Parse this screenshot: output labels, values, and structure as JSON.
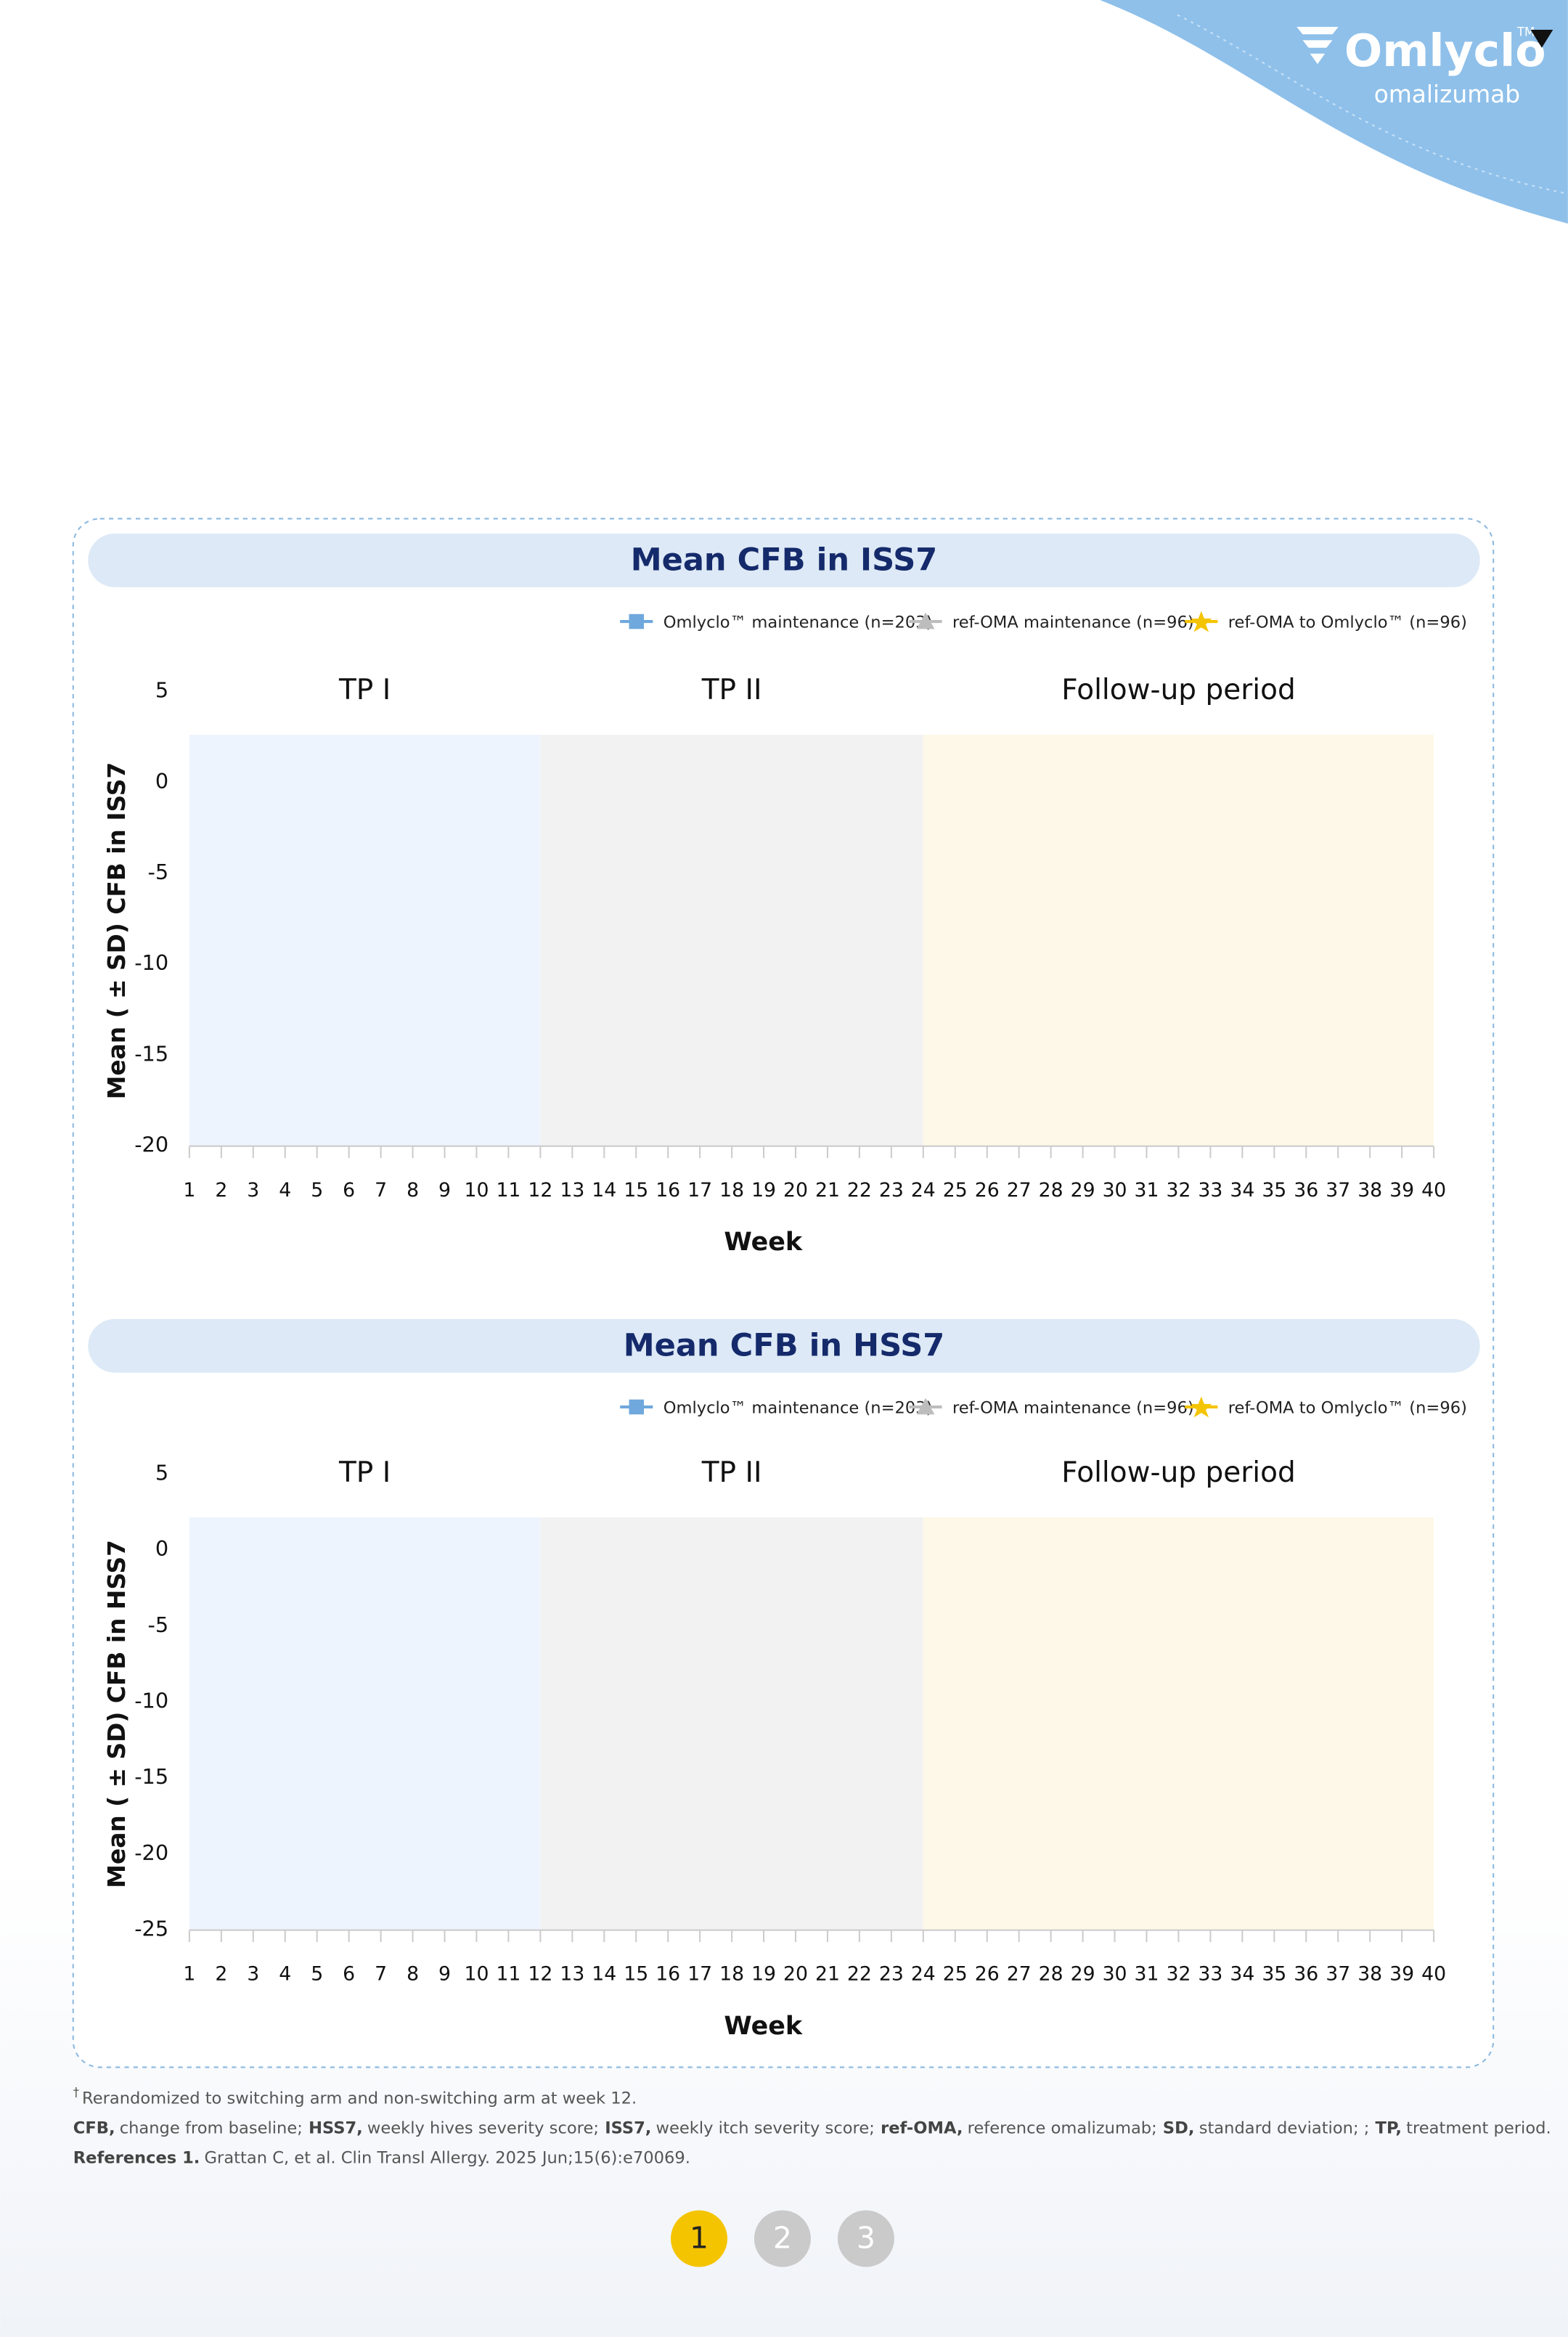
{
  "header": {
    "logo": "Omlyclo",
    "trademark": "TM",
    "tagline": "omalizumab"
  },
  "chart_data": [
    {
      "type": "line",
      "title": "Mean CFB in ISS7",
      "y_label": "Mean ( ± SD) CFB in ISS7",
      "x_label": "Week",
      "series": [
        {
          "name": "Omlyclo™ maintenance (n=203)",
          "color": "#6fa8dc",
          "marker": "square"
        },
        {
          "name": "ref-OMA maintenance (n=96)",
          "color": "#bdbdbd",
          "marker": "triangle"
        },
        {
          "name": "ref-OMA to Omlyclo™ (n=96)",
          "color": "#f5c400",
          "marker": "star"
        }
      ],
      "periods": [
        {
          "label": "TP I",
          "start": 1,
          "end": 12,
          "color": "#eef4fd"
        },
        {
          "label": "TP II",
          "start": 12,
          "end": 24,
          "color": "#f2f2f2"
        },
        {
          "label": "Follow-up period",
          "start": 24,
          "end": 40,
          "color": "#fdf8e7"
        }
      ],
      "xlim": [
        1,
        40
      ],
      "xticks": [
        1,
        2,
        3,
        4,
        5,
        6,
        7,
        8,
        9,
        10,
        11,
        12,
        13,
        14,
        15,
        16,
        17,
        18,
        19,
        20,
        21,
        22,
        23,
        24,
        25,
        26,
        27,
        28,
        29,
        30,
        31,
        32,
        33,
        34,
        35,
        36,
        37,
        38,
        39,
        40
      ],
      "ylim": [
        -20,
        5
      ],
      "yticks": [
        -20,
        -15,
        -10,
        -5,
        0,
        5
      ],
      "grid": false
    },
    {
      "type": "line",
      "title": "Mean CFB in HSS7",
      "y_label": "Mean ( ± SD) CFB in HSS7",
      "x_label": "Week",
      "series": [
        {
          "name": "Omlyclo™ maintenance (n=203)",
          "color": "#6fa8dc",
          "marker": "square"
        },
        {
          "name": "ref-OMA maintenance (n=96)",
          "color": "#bdbdbd",
          "marker": "triangle"
        },
        {
          "name": "ref-OMA to Omlyclo™ (n=96)",
          "color": "#f5c400",
          "marker": "star"
        }
      ],
      "periods": [
        {
          "label": "TP I",
          "start": 1,
          "end": 12,
          "color": "#eef4fd"
        },
        {
          "label": "TP II",
          "start": 12,
          "end": 24,
          "color": "#f2f2f2"
        },
        {
          "label": "Follow-up period",
          "start": 24,
          "end": 40,
          "color": "#fdf8e7"
        }
      ],
      "xlim": [
        1,
        40
      ],
      "xticks": [
        1,
        2,
        3,
        4,
        5,
        6,
        7,
        8,
        9,
        10,
        11,
        12,
        13,
        14,
        15,
        16,
        17,
        18,
        19,
        20,
        21,
        22,
        23,
        24,
        25,
        26,
        27,
        28,
        29,
        30,
        31,
        32,
        33,
        34,
        35,
        36,
        37,
        38,
        39,
        40
      ],
      "ylim": [
        -25,
        5
      ],
      "yticks": [
        -25,
        -20,
        -15,
        -10,
        -5,
        0,
        5
      ],
      "grid": false
    }
  ],
  "footnotes": {
    "note": {
      "marker": "†",
      "text": "Rerandomized to switching arm and non-switching arm at week 12."
    },
    "abbreviations": [
      {
        "term": "CFB,",
        "text": "change from baseline;"
      },
      {
        "term": "HSS7,",
        "text": "weekly hives severity score;"
      },
      {
        "term": "ISS7,",
        "text": "weekly itch severity score;"
      },
      {
        "term": "ref-OMA,",
        "text": "reference omalizumab;"
      },
      {
        "term": "SD,",
        "text": "standard deviation; ;"
      },
      {
        "term": "TP,",
        "text": "treatment period."
      }
    ],
    "references": {
      "term": "References 1.",
      "text": "Grattan C, et al. Clin Transl Allergy. 2025 Jun;15(6):e70069."
    }
  },
  "pagination": [
    "1",
    "2",
    "3"
  ]
}
